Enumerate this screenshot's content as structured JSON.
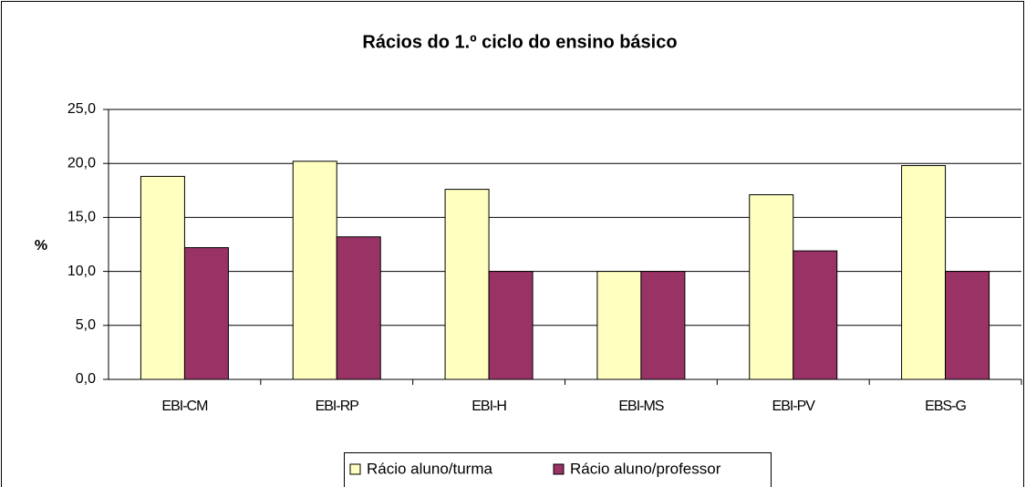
{
  "chart_data": {
    "type": "bar",
    "title": "Rácios do 1.º ciclo do ensino básico",
    "y_label": "%",
    "categories": [
      "EBI-CM",
      "EBI-RP",
      "EBI-H",
      "EBI-MS",
      "EBI-PV",
      "EBS-G"
    ],
    "series": [
      {
        "name": "Rácio aluno/turma",
        "color": "#ffffc0",
        "values": [
          18.8,
          20.2,
          17.6,
          10.0,
          17.1,
          19.8
        ]
      },
      {
        "name": "Rácio aluno/professor",
        "color": "#993366",
        "values": [
          12.2,
          13.2,
          10.0,
          10.0,
          11.9,
          10.0
        ]
      }
    ],
    "ylim": [
      0,
      25
    ],
    "yticks": [
      {
        "value": 0,
        "label": "0,0"
      },
      {
        "value": 5,
        "label": "5,0"
      },
      {
        "value": 10,
        "label": "10,0"
      },
      {
        "value": 15,
        "label": "15,0"
      },
      {
        "value": 20,
        "label": "20,0"
      },
      {
        "value": 25,
        "label": "25,0"
      }
    ],
    "grid": true,
    "legend": "bottom"
  }
}
